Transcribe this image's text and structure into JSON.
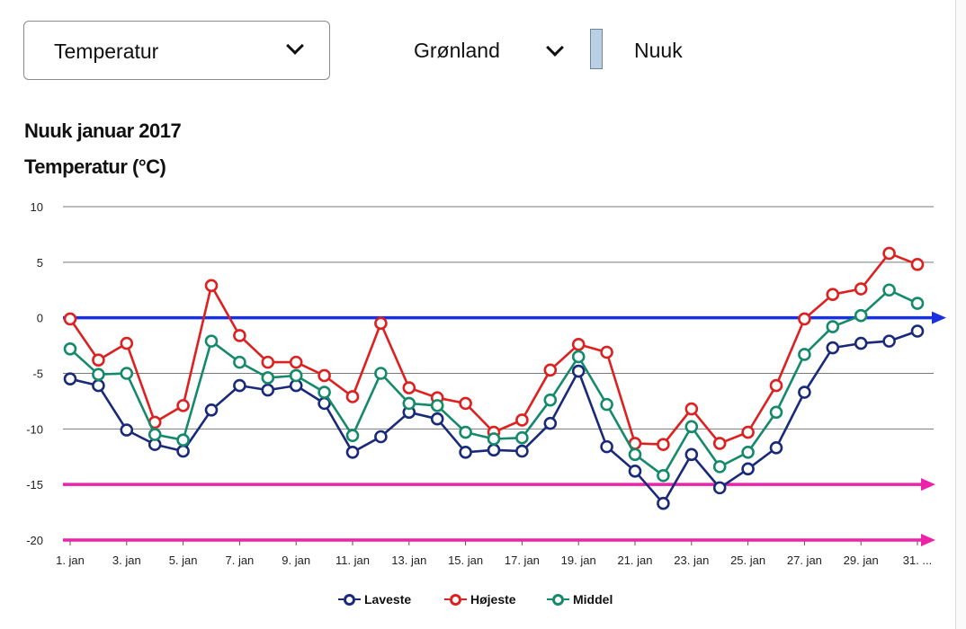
{
  "controls": {
    "variable_label": "Temperatur",
    "region_label": "Grønland",
    "station_label": "Nuuk"
  },
  "colors": {
    "lows": "#1a2a7a",
    "highs": "#dd2020",
    "mean": "#148a6a",
    "zero_line": "#1830e0",
    "threshold_lines": "#ee22aa"
  },
  "icons": {
    "selector_caret": "chevron-down-icon",
    "region_caret": "chevron-down-icon"
  },
  "chart_data": {
    "type": "line",
    "title": "Nuuk januar 2017",
    "ylabel": "Temperatur (°C)",
    "xlabel": "",
    "ylim": [
      -20,
      10
    ],
    "yticks": [
      10,
      5,
      0,
      -5,
      -10,
      -15,
      -20
    ],
    "grid": true,
    "legend_position": "bottom-center",
    "x": [
      "1. jan",
      "2. jan",
      "3. jan",
      "4. jan",
      "5. jan",
      "6. jan",
      "7. jan",
      "8. jan",
      "9. jan",
      "10. jan",
      "11. jan",
      "12. jan",
      "13. jan",
      "14. jan",
      "15. jan",
      "16. jan",
      "17. jan",
      "18. jan",
      "19. jan",
      "20. jan",
      "21. jan",
      "22. jan",
      "23. jan",
      "24. jan",
      "25. jan",
      "26. jan",
      "27. jan",
      "28. jan",
      "29. jan",
      "30. jan",
      "31. jan"
    ],
    "xtick_labels": [
      "1. jan",
      "3. jan",
      "5. jan",
      "7. jan",
      "9. jan",
      "11. jan",
      "13. jan",
      "15. jan",
      "17. jan",
      "19. jan",
      "21. jan",
      "23. jan",
      "25. jan",
      "27. jan",
      "29. jan",
      "31. ..."
    ],
    "series": [
      {
        "name": "Laveste",
        "color_key": "lows",
        "values": [
          -5.5,
          -6.1,
          -10.1,
          -11.4,
          -12.0,
          -8.3,
          -6.1,
          -6.5,
          -6.1,
          -7.7,
          -12.1,
          -10.7,
          -8.5,
          -9.1,
          -12.1,
          -11.9,
          -12.0,
          -9.5,
          -4.8,
          -11.6,
          -13.8,
          -16.7,
          -12.3,
          -15.3,
          -13.6,
          -11.7,
          -6.7,
          -2.7,
          -2.3,
          -2.1,
          -1.2
        ]
      },
      {
        "name": "Højeste",
        "color_key": "highs",
        "values": [
          -0.1,
          -3.8,
          -2.3,
          -9.4,
          -7.9,
          2.9,
          -1.6,
          -4.0,
          -4.0,
          -5.2,
          -7.1,
          -0.5,
          -6.3,
          -7.2,
          -7.7,
          -10.3,
          -9.2,
          -4.7,
          -2.4,
          -3.1,
          -11.3,
          -11.4,
          -8.2,
          -11.3,
          -10.3,
          -6.1,
          -0.1,
          2.1,
          2.6,
          5.8,
          4.8
        ]
      },
      {
        "name": "Middel",
        "color_key": "mean",
        "values": [
          -2.8,
          -5.1,
          -5.0,
          -10.5,
          -11.0,
          -2.1,
          -4.0,
          -5.4,
          -5.2,
          -6.7,
          -10.6,
          -5.0,
          -7.7,
          -7.9,
          -10.3,
          -10.9,
          -10.8,
          -7.4,
          -3.5,
          -7.8,
          -12.3,
          -14.2,
          -9.8,
          -13.4,
          -12.1,
          -8.5,
          -3.3,
          -0.8,
          0.2,
          2.5,
          1.3
        ]
      }
    ],
    "reference_lines": [
      {
        "value": 0,
        "color_key": "zero_line",
        "arrow": true
      },
      {
        "value": -15,
        "color_key": "threshold_lines",
        "arrow": true
      },
      {
        "value": -20,
        "color_key": "threshold_lines",
        "arrow": true
      }
    ]
  }
}
